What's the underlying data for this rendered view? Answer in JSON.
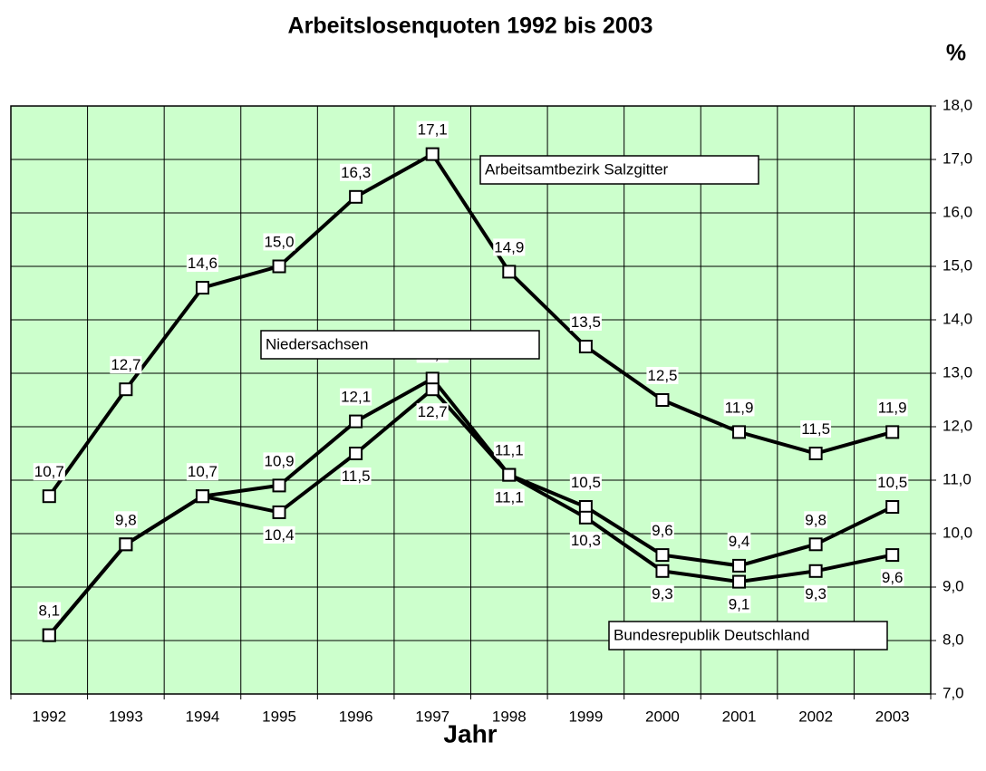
{
  "chart_data": {
    "type": "line",
    "title": "Arbeitslosenquoten 1992 bis 2003",
    "y_unit": "%",
    "x_label": "Jahr",
    "categories": [
      "1992",
      "1993",
      "1994",
      "1995",
      "1996",
      "1997",
      "1998",
      "1999",
      "2000",
      "2001",
      "2002",
      "2003"
    ],
    "series": [
      {
        "name": "Arbeitsamtbezirk Salzgitter",
        "color": "#000000",
        "values": [
          10.7,
          12.7,
          14.6,
          15.0,
          16.3,
          17.1,
          14.9,
          13.5,
          12.5,
          11.9,
          11.5,
          11.9
        ],
        "value_labels": [
          "10,7",
          "12,7",
          "14,6",
          "15,0",
          "16,3",
          "17,1",
          "14,9",
          "13,5",
          "12,5",
          "11,9",
          "11,5",
          "11,9"
        ]
      },
      {
        "name": "Niedersachsen",
        "color": "#000000",
        "values": [
          8.1,
          9.8,
          10.7,
          10.9,
          12.1,
          12.9,
          11.1,
          10.5,
          9.6,
          9.4,
          9.8,
          10.5
        ],
        "value_labels": [
          "8,1",
          "9,8",
          "10,7",
          "10,9",
          "12,1",
          "12,9",
          "11,1",
          "10,5",
          "9,6",
          "9,4",
          "9,8",
          "10,5"
        ]
      },
      {
        "name": "Bundesrepublik Deutschland",
        "color": "#000000",
        "values": [
          8.1,
          9.8,
          10.7,
          10.4,
          11.5,
          12.7,
          11.1,
          10.3,
          9.3,
          9.1,
          9.3,
          9.6
        ],
        "value_labels": [
          null,
          null,
          null,
          "10,4",
          "11,5",
          "12,7",
          "11,1",
          "10,3",
          "9,3",
          "9,1",
          "9,3",
          "9,6"
        ]
      }
    ],
    "ylim": [
      7.0,
      18.0
    ],
    "yticks": [
      {
        "value": 7,
        "label": "7,0"
      },
      {
        "value": 8,
        "label": "8,0"
      },
      {
        "value": 9,
        "label": "9,0"
      },
      {
        "value": 10,
        "label": "10,0"
      },
      {
        "value": 11,
        "label": "11,0"
      },
      {
        "value": 12,
        "label": "12,0"
      },
      {
        "value": 13,
        "label": "13,0"
      },
      {
        "value": 14,
        "label": "14,0"
      },
      {
        "value": 15,
        "label": "15,0"
      },
      {
        "value": 16,
        "label": "16,0"
      },
      {
        "value": 17,
        "label": "17,0"
      },
      {
        "value": 18,
        "label": "18,0"
      }
    ],
    "grid": true,
    "background": "#ccffcc"
  }
}
